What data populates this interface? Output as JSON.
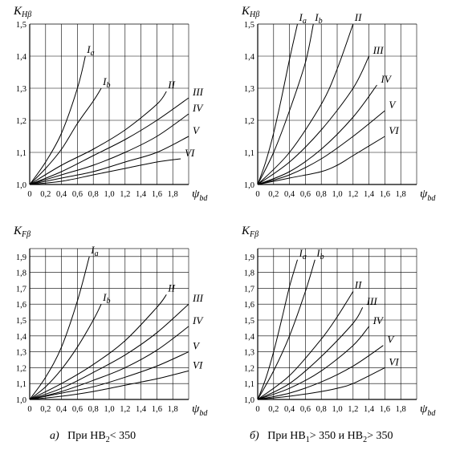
{
  "chart_data": [
    {
      "type": "line",
      "ylabel": {
        "main": "K",
        "sub": "Hβ"
      },
      "xlabel": {
        "main": "ψ",
        "sub": "bd"
      },
      "xlim": [
        0,
        2.0
      ],
      "ylim": [
        1.0,
        1.5
      ],
      "xticks": [
        "0",
        "0,2",
        "0,4",
        "0,6",
        "0,8",
        "1,0",
        "1,2",
        "1,4",
        "1,6",
        "1,8"
      ],
      "yticks": [
        "1,0",
        "1,1",
        "1,2",
        "1,3",
        "1,4",
        "1,5"
      ],
      "grid": true,
      "series": [
        {
          "name": "Ia",
          "x": [
            0,
            0.2,
            0.4,
            0.6,
            0.7
          ],
          "y": [
            1.0,
            1.07,
            1.16,
            1.3,
            1.4
          ]
        },
        {
          "name": "Ib",
          "x": [
            0,
            0.2,
            0.4,
            0.6,
            0.8,
            0.9
          ],
          "y": [
            1.0,
            1.05,
            1.11,
            1.19,
            1.26,
            1.3
          ]
        },
        {
          "name": "II",
          "x": [
            0,
            0.4,
            0.8,
            1.2,
            1.6,
            1.72
          ],
          "y": [
            1.0,
            1.06,
            1.11,
            1.17,
            1.25,
            1.29
          ]
        },
        {
          "name": "III",
          "x": [
            0,
            0.4,
            0.8,
            1.2,
            1.6,
            2.0
          ],
          "y": [
            1.0,
            1.04,
            1.09,
            1.14,
            1.2,
            1.27
          ]
        },
        {
          "name": "IV",
          "x": [
            0,
            0.4,
            0.8,
            1.2,
            1.6,
            2.0
          ],
          "y": [
            1.0,
            1.03,
            1.06,
            1.1,
            1.15,
            1.22
          ]
        },
        {
          "name": "V",
          "x": [
            0,
            0.4,
            0.8,
            1.2,
            1.6,
            2.0
          ],
          "y": [
            1.0,
            1.02,
            1.04,
            1.07,
            1.1,
            1.15
          ]
        },
        {
          "name": "VI",
          "x": [
            0,
            0.4,
            0.8,
            1.2,
            1.6,
            1.9
          ],
          "y": [
            1.0,
            1.01,
            1.03,
            1.05,
            1.07,
            1.08
          ]
        }
      ]
    },
    {
      "type": "line",
      "ylabel": {
        "main": "K",
        "sub": "Hβ"
      },
      "xlabel": {
        "main": "ψ",
        "sub": "bd"
      },
      "xlim": [
        0,
        2.0
      ],
      "ylim": [
        1.0,
        1.5
      ],
      "xticks": [
        "0",
        "0,2",
        "0,4",
        "0,6",
        "0,8",
        "1,0",
        "1,2",
        "1,4",
        "1,6",
        "1,8"
      ],
      "yticks": [
        "1,0",
        "1,1",
        "1,2",
        "1,3",
        "1,4",
        "1,5"
      ],
      "grid": true,
      "series": [
        {
          "name": "Ia",
          "x": [
            0,
            0.1,
            0.2,
            0.3,
            0.4,
            0.5
          ],
          "y": [
            1.0,
            1.07,
            1.16,
            1.27,
            1.39,
            1.5
          ]
        },
        {
          "name": "Ib",
          "x": [
            0,
            0.2,
            0.4,
            0.6,
            0.7
          ],
          "y": [
            1.0,
            1.1,
            1.23,
            1.38,
            1.5
          ]
        },
        {
          "name": "II",
          "x": [
            0,
            0.4,
            0.8,
            1.0,
            1.2
          ],
          "y": [
            1.0,
            1.1,
            1.25,
            1.36,
            1.5
          ]
        },
        {
          "name": "III",
          "x": [
            0,
            0.4,
            0.8,
            1.2,
            1.4
          ],
          "y": [
            1.0,
            1.07,
            1.17,
            1.3,
            1.4
          ]
        },
        {
          "name": "IV",
          "x": [
            0,
            0.4,
            0.8,
            1.2,
            1.5
          ],
          "y": [
            1.0,
            1.04,
            1.11,
            1.21,
            1.31
          ]
        },
        {
          "name": "V",
          "x": [
            0,
            0.4,
            0.8,
            1.2,
            1.6
          ],
          "y": [
            1.0,
            1.03,
            1.08,
            1.15,
            1.23
          ]
        },
        {
          "name": "VI",
          "x": [
            0,
            0.4,
            0.8,
            1.0,
            1.2,
            1.6
          ],
          "y": [
            1.0,
            1.02,
            1.04,
            1.06,
            1.09,
            1.15
          ]
        }
      ]
    },
    {
      "type": "line",
      "ylabel": {
        "main": "K",
        "sub": "Fβ"
      },
      "xlabel": {
        "main": "ψ",
        "sub": "bd"
      },
      "xlim": [
        0,
        2.0
      ],
      "ylim": [
        1.0,
        2.0
      ],
      "xticks": [
        "0",
        "0,2",
        "0,4",
        "0,6",
        "0,8",
        "1,0",
        "1,2",
        "1,4",
        "1,6",
        "1,8"
      ],
      "yticks": [
        "1,0",
        "1,1",
        "1,2",
        "1,3",
        "1,4",
        "1,5",
        "1,6",
        "1,7",
        "1,8",
        "1,9"
      ],
      "grid": true,
      "series": [
        {
          "name": "Ia",
          "x": [
            0,
            0.2,
            0.4,
            0.6,
            0.75
          ],
          "y": [
            1.0,
            1.14,
            1.33,
            1.62,
            1.9
          ]
        },
        {
          "name": "Ib",
          "x": [
            0,
            0.2,
            0.4,
            0.6,
            0.8,
            0.9
          ],
          "y": [
            1.0,
            1.08,
            1.19,
            1.33,
            1.5,
            1.6
          ]
        },
        {
          "name": "II",
          "x": [
            0,
            0.4,
            0.8,
            1.2,
            1.6,
            1.72
          ],
          "y": [
            1.0,
            1.1,
            1.22,
            1.37,
            1.58,
            1.66
          ]
        },
        {
          "name": "III",
          "x": [
            0,
            0.4,
            0.8,
            1.2,
            1.6,
            2.0
          ],
          "y": [
            1.0,
            1.07,
            1.17,
            1.28,
            1.42,
            1.6
          ]
        },
        {
          "name": "IV",
          "x": [
            0,
            0.4,
            0.8,
            1.2,
            1.6,
            2.0
          ],
          "y": [
            1.0,
            1.05,
            1.12,
            1.2,
            1.31,
            1.46
          ]
        },
        {
          "name": "V",
          "x": [
            0,
            0.4,
            0.8,
            1.2,
            1.6,
            2.0
          ],
          "y": [
            1.0,
            1.04,
            1.08,
            1.14,
            1.21,
            1.3
          ]
        },
        {
          "name": "VI",
          "x": [
            0,
            0.4,
            0.8,
            1.2,
            1.6,
            2.0
          ],
          "y": [
            1.0,
            1.02,
            1.05,
            1.09,
            1.13,
            1.18
          ]
        }
      ]
    },
    {
      "type": "line",
      "ylabel": {
        "main": "K",
        "sub": "Fβ"
      },
      "xlabel": {
        "main": "ψ",
        "sub": "bd"
      },
      "xlim": [
        0,
        2.0
      ],
      "ylim": [
        1.0,
        2.0
      ],
      "xticks": [
        "0",
        "0,2",
        "0,4",
        "0,6",
        "0,8",
        "1,0",
        "1,2",
        "1,4",
        "1,6",
        "1,8"
      ],
      "yticks": [
        "1,0",
        "1,1",
        "1,2",
        "1,3",
        "1,4",
        "1,5",
        "1,6",
        "1,7",
        "1,8",
        "1,9"
      ],
      "grid": true,
      "series": [
        {
          "name": "Ia",
          "x": [
            0,
            0.1,
            0.2,
            0.3,
            0.4,
            0.5
          ],
          "y": [
            1.0,
            1.13,
            1.3,
            1.5,
            1.71,
            1.88
          ]
        },
        {
          "name": "Ib",
          "x": [
            0,
            0.2,
            0.4,
            0.6,
            0.72
          ],
          "y": [
            1.0,
            1.18,
            1.4,
            1.68,
            1.88
          ]
        },
        {
          "name": "II",
          "x": [
            0,
            0.4,
            0.8,
            1.0,
            1.2
          ],
          "y": [
            1.0,
            1.15,
            1.38,
            1.52,
            1.68
          ]
        },
        {
          "name": "III",
          "x": [
            0,
            0.4,
            0.8,
            1.2,
            1.32
          ],
          "y": [
            1.0,
            1.1,
            1.27,
            1.48,
            1.58
          ]
        },
        {
          "name": "IV",
          "x": [
            0,
            0.4,
            0.8,
            1.2,
            1.4
          ],
          "y": [
            1.0,
            1.07,
            1.18,
            1.34,
            1.46
          ]
        },
        {
          "name": "V",
          "x": [
            0,
            0.4,
            0.8,
            1.2,
            1.58
          ],
          "y": [
            1.0,
            1.04,
            1.11,
            1.21,
            1.34
          ]
        },
        {
          "name": "VI",
          "x": [
            0,
            0.4,
            0.8,
            1.0,
            1.2,
            1.6
          ],
          "y": [
            1.0,
            1.02,
            1.05,
            1.07,
            1.1,
            1.2
          ]
        }
      ]
    }
  ],
  "captions": {
    "a": {
      "letter": "а)",
      "text": "При НВ",
      "sub": "2",
      "rest": "< 350"
    },
    "b": {
      "letter": "б)",
      "text": "При НВ",
      "sub1": "1",
      "mid": "> 350 и НВ",
      "sub2": "2",
      "rest": "> 350"
    }
  }
}
